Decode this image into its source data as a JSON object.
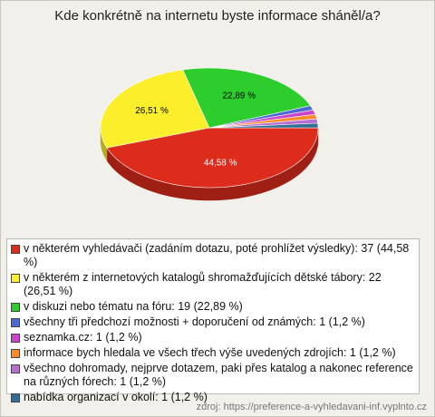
{
  "chart_data": {
    "type": "pie",
    "title": "Kde konkrétně na internetu byste informace sháněl/a?",
    "labels": [
      "v některém vyhledávači (zadáním dotazu, poté prohlížet výsledky): 37 (44,58 %)",
      "v některém z internetových katalogů shromažďujících dětské tábory: 22 (26,51 %)",
      "v diskuzi nebo tématu na fóru: 19 (22,89 %)",
      "všechny tři předchozí možnosti + doporučení od známých: 1 (1,2 %)",
      "seznamka.cz: 1 (1,2 %)",
      "informace bych hledala ve všech třech výše uvedených zdrojích: 1 (1,2 %)",
      "všechno dohromady, nejprve dotazem, paki přes katalog a nakonec reference na různých fórech: 1 (1,2 %)",
      "nabídka organizací v okolí: 1 (1,2 %)"
    ],
    "values": [
      37,
      22,
      19,
      1,
      1,
      1,
      1,
      1
    ],
    "value_labels": [
      "44,58 %",
      "26,51 %",
      "22,89 %",
      null,
      null,
      null,
      null,
      null
    ],
    "colors": [
      "#dd2b1c",
      "#fbee2a",
      "#2ccd2c",
      "#4c68d4",
      "#cc44cc",
      "#ff8a2b",
      "#b86fd0",
      "#2f6f95"
    ],
    "source": "zdroj: https://preference-a-vyhledavani-inf.vyplnto.cz"
  }
}
